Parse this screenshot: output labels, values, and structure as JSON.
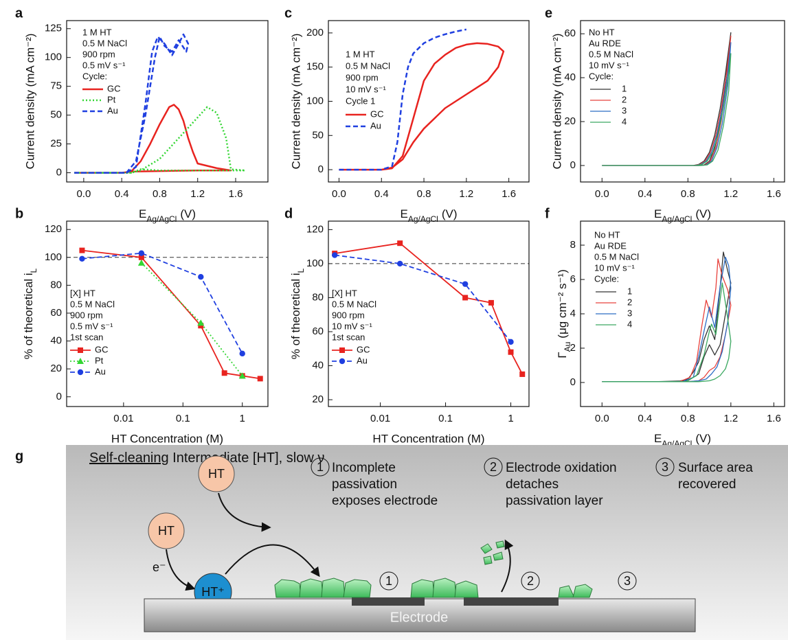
{
  "chart_data": [
    {
      "panel": "a",
      "type": "line",
      "xlabel": [
        "E",
        "Ag/AgCl",
        "(V)"
      ],
      "ylabel": "Current density (mA cm⁻²)",
      "xlim": [
        -0.18,
        1.94
      ],
      "xticks": [
        {
          "value": 0,
          "label": "0.0"
        },
        0.4,
        0.8,
        1.2,
        1.6
      ],
      "ylim": [
        -8,
        132
      ],
      "yticks": [
        0,
        25,
        50,
        75,
        100,
        125
      ],
      "annotations": [
        "1 M HT",
        "0.5 M NaCl",
        "900 rpm",
        "0.5 mV s⁻¹",
        "Cycle:"
      ],
      "series": [
        {
          "name": "GC",
          "color": "#e8231f",
          "line_style": "solid",
          "x": [
            -0.1,
            0.4,
            0.5,
            0.6,
            0.7,
            0.8,
            0.9,
            0.95,
            1.0,
            1.05,
            1.1,
            1.15,
            1.2,
            1.4,
            1.55,
            1.2,
            0.8,
            0.5,
            0.4,
            -0.1
          ],
          "values": [
            0,
            0,
            1,
            10,
            25,
            42,
            57,
            59,
            55,
            45,
            30,
            18,
            8,
            4,
            2,
            2,
            1.5,
            1,
            0,
            0
          ]
        },
        {
          "name": "Pt",
          "color": "#33d633",
          "line_style": "dotted",
          "x": [
            -0.1,
            0.5,
            0.6,
            0.8,
            1.0,
            1.2,
            1.3,
            1.4,
            1.5,
            1.55,
            1.7,
            1.2,
            0.8,
            0.6,
            0.5,
            -0.1
          ],
          "values": [
            0,
            0,
            2,
            12,
            30,
            48,
            57,
            52,
            30,
            3,
            2,
            2,
            2,
            3,
            0,
            0
          ]
        },
        {
          "name": "Au",
          "color": "#1f3fe0",
          "line_style": "dashed",
          "x": [
            -0.1,
            0.45,
            0.55,
            0.65,
            0.72,
            0.78,
            0.85,
            0.93,
            1.0,
            1.05,
            1.1,
            1.08,
            1.0,
            0.93,
            0.85,
            0.8,
            0.75,
            0.65,
            0.55,
            0.45,
            -0.1
          ],
          "values": [
            0,
            0,
            5,
            60,
            105,
            118,
            112,
            102,
            112,
            120,
            112,
            105,
            115,
            105,
            110,
            118,
            100,
            50,
            10,
            0,
            0
          ]
        }
      ]
    },
    {
      "panel": "b",
      "type": "line",
      "xlog": true,
      "xlabel": "HT Concentration (M)",
      "ylabel": [
        "% of theoretical i",
        "L"
      ],
      "xlim": [
        0.0011,
        2.7
      ],
      "xticks": [
        0.01,
        0.1,
        1
      ],
      "ylim": [
        -7,
        126
      ],
      "yticks": [
        0,
        20,
        40,
        60,
        80,
        100,
        120
      ],
      "reference_line": 100,
      "annotations": [
        "[X] HT",
        "0.5 M NaCl",
        "900 rpm",
        "0.5 mV s⁻¹",
        "1st scan"
      ],
      "series": [
        {
          "name": "GC",
          "color": "#e8231f",
          "line_style": "solid",
          "marker": "square",
          "x": [
            0.002,
            0.02,
            0.2,
            0.5,
            1,
            2
          ],
          "values": [
            105,
            100,
            51,
            17,
            15,
            13
          ]
        },
        {
          "name": "Pt",
          "color": "#33d633",
          "line_style": "dotted",
          "marker": "triangle",
          "x": [
            0.02,
            0.2,
            1
          ],
          "values": [
            96,
            53,
            15
          ]
        },
        {
          "name": "Au",
          "color": "#1f3fe0",
          "line_style": "dashed",
          "marker": "circle",
          "x": [
            0.002,
            0.02,
            0.2,
            1
          ],
          "values": [
            99,
            103,
            86,
            31
          ]
        }
      ]
    },
    {
      "panel": "c",
      "type": "line",
      "xlabel": [
        "E",
        "Ag/AgCl",
        "(V)"
      ],
      "ylabel": "Current density (mA cm⁻²)",
      "xlim": [
        -0.1,
        1.79
      ],
      "xticks": [
        {
          "value": 0,
          "label": "0.0"
        },
        0.4,
        0.8,
        1.2,
        1.6
      ],
      "ylim": [
        -18,
        218
      ],
      "yticks": [
        0,
        50,
        100,
        150,
        200
      ],
      "annotations": [
        "1 M HT",
        "0.5 M NaCl",
        "900 rpm",
        "10 mV s⁻¹",
        "Cycle 1"
      ],
      "series": [
        {
          "name": "GC",
          "color": "#e8231f",
          "line_style": "solid",
          "x": [
            0,
            0.4,
            0.5,
            0.6,
            0.7,
            0.8,
            0.9,
            1.0,
            1.1,
            1.2,
            1.3,
            1.4,
            1.5,
            1.55,
            1.5,
            1.4,
            1.2,
            1.0,
            0.8,
            0.7,
            0.6,
            0.5,
            0.4,
            0
          ],
          "values": [
            0,
            0,
            2,
            20,
            75,
            130,
            155,
            168,
            178,
            183,
            185,
            184,
            180,
            173,
            150,
            130,
            110,
            90,
            60,
            40,
            15,
            3,
            0,
            0
          ]
        },
        {
          "name": "Au",
          "color": "#1f3fe0",
          "line_style": "dashed",
          "x": [
            0,
            0.4,
            0.5,
            0.55,
            0.6,
            0.65,
            0.7,
            0.8,
            0.9,
            1.0,
            1.1,
            1.2
          ],
          "values": [
            0,
            0,
            5,
            40,
            110,
            150,
            170,
            185,
            193,
            198,
            202,
            205
          ]
        }
      ]
    },
    {
      "panel": "d",
      "type": "line",
      "xlog": true,
      "xlabel": "HT Concentration (M)",
      "ylabel": [
        "% of theoretical i",
        "L"
      ],
      "xlim": [
        0.0016,
        1.9
      ],
      "xticks": [
        0.01,
        0.1,
        1
      ],
      "ylim": [
        16,
        125
      ],
      "yticks": [
        20,
        40,
        60,
        80,
        100,
        120
      ],
      "reference_line": 100,
      "annotations": [
        "[X] HT",
        "0.5 M NaCl",
        "900 rpm",
        "10 mV s⁻¹",
        "1st scan"
      ],
      "series": [
        {
          "name": "GC",
          "color": "#e8231f",
          "line_style": "solid",
          "marker": "square",
          "x": [
            0.002,
            0.02,
            0.2,
            0.5,
            1,
            1.5
          ],
          "values": [
            106,
            112,
            80,
            77,
            48,
            35
          ]
        },
        {
          "name": "Au",
          "color": "#1f3fe0",
          "line_style": "dashed",
          "marker": "circle",
          "x": [
            0.002,
            0.02,
            0.2,
            1
          ],
          "values": [
            105,
            100,
            88,
            54
          ]
        }
      ]
    },
    {
      "panel": "e",
      "type": "line",
      "xlabel": [
        "E",
        "Ag/AgCl",
        "(V)"
      ],
      "ylabel": "Current density (mA cm⁻²)",
      "xlim": [
        -0.2,
        1.7
      ],
      "xticks": [
        {
          "value": 0,
          "label": "0.0"
        },
        0.4,
        0.8,
        1.2,
        1.6
      ],
      "ylim": [
        -7.5,
        66
      ],
      "yticks": [
        0,
        20,
        40,
        60
      ],
      "annotations": [
        "No HT",
        "Au RDE",
        "0.5 M NaCl",
        "10 mV s⁻¹",
        "Cycle:"
      ],
      "series": [
        {
          "name": "1",
          "color": "#333333",
          "line_style": "solid",
          "x": [
            0,
            0.85,
            0.9,
            0.95,
            1.0,
            1.05,
            1.1,
            1.15,
            1.2,
            1.15,
            1.1,
            1.05,
            1.0,
            0.95,
            0.9,
            0
          ],
          "values": [
            0,
            0,
            0.5,
            2,
            6,
            14,
            26,
            42,
            60.5,
            38,
            20,
            8,
            2,
            0.3,
            0,
            0
          ]
        },
        {
          "name": "2",
          "color": "#e8413c",
          "line_style": "solid",
          "x": [
            0,
            0.86,
            0.91,
            0.96,
            1.01,
            1.06,
            1.11,
            1.16,
            1.2,
            1.16,
            1.11,
            1.06,
            1.01,
            0.96,
            0.91,
            0
          ],
          "values": [
            0,
            0,
            0.5,
            2,
            6,
            14,
            26,
            42,
            59,
            38,
            20,
            8,
            2,
            0.3,
            0,
            0
          ]
        },
        {
          "name": "3",
          "color": "#2b6cc4",
          "line_style": "solid",
          "x": [
            0,
            0.87,
            0.92,
            0.97,
            1.02,
            1.07,
            1.12,
            1.17,
            1.2,
            1.17,
            1.12,
            1.07,
            1.02,
            0.97,
            0.92,
            0
          ],
          "values": [
            0,
            0,
            0.5,
            2,
            6,
            14,
            26,
            42,
            56,
            36,
            19,
            8,
            2,
            0.3,
            0,
            0
          ]
        },
        {
          "name": "4",
          "color": "#3aa860",
          "line_style": "solid",
          "x": [
            0,
            0.88,
            0.93,
            0.98,
            1.03,
            1.08,
            1.13,
            1.18,
            1.2,
            1.18,
            1.13,
            1.08,
            1.03,
            0.98,
            0.93,
            0
          ],
          "values": [
            0,
            0,
            0.5,
            2,
            6,
            14,
            26,
            42,
            51,
            34,
            18,
            7,
            2,
            0.3,
            0,
            0
          ]
        }
      ]
    },
    {
      "panel": "f",
      "type": "line",
      "xlabel": [
        "E",
        "Ag/AgCl",
        "(V)"
      ],
      "ylabel": [
        "Γ",
        "Au",
        "(μg cm⁻² s⁻¹)"
      ],
      "xlim": [
        -0.2,
        1.7
      ],
      "xticks": [
        {
          "value": 0,
          "label": "0.0"
        },
        0.4,
        0.8,
        1.2,
        1.6
      ],
      "ylim": [
        -1.4,
        9.4
      ],
      "yticks": [
        0,
        2,
        4,
        6,
        8
      ],
      "annotations": [
        "No HT",
        "Au RDE",
        "0.5 M NaCl",
        "10 mV s⁻¹",
        "Cycle:"
      ],
      "series": [
        {
          "name": "1",
          "color": "#333333",
          "line_style": "solid",
          "x": [
            0,
            0.7,
            0.8,
            0.85,
            0.9,
            0.95,
            1.0,
            1.05,
            1.1,
            1.13,
            1.17,
            1.2,
            1.15,
            1.1,
            1.05,
            1.0,
            0.95,
            0.9,
            0.8,
            0.5,
            0
          ],
          "values": [
            0.05,
            0.05,
            0.2,
            0.6,
            1.2,
            2.5,
            3.3,
            2.5,
            5.5,
            7.6,
            6.5,
            5.8,
            4,
            2.2,
            1.6,
            2.2,
            1.5,
            0.5,
            0.1,
            0.05,
            0.05
          ]
        },
        {
          "name": "2",
          "color": "#e8413c",
          "line_style": "solid",
          "x": [
            0,
            0.72,
            0.82,
            0.88,
            0.93,
            0.97,
            1.02,
            1.06,
            1.08,
            1.12,
            1.17,
            1.2,
            1.15,
            1.1,
            1.05,
            1.0,
            0.95,
            0.9,
            0.8,
            0
          ],
          "values": [
            0.05,
            0.05,
            0.3,
            1.2,
            3.3,
            4.8,
            3.8,
            5.5,
            7.2,
            6.2,
            5.4,
            4.5,
            2.8,
            1.5,
            0.9,
            0.7,
            0.3,
            0.1,
            0.05,
            0.05
          ]
        },
        {
          "name": "3",
          "color": "#2b6cc4",
          "line_style": "solid",
          "x": [
            0,
            0.75,
            0.85,
            0.9,
            0.95,
            1.0,
            1.05,
            1.1,
            1.15,
            1.18,
            1.2,
            1.17,
            1.12,
            1.07,
            1.02,
            0.97,
            0.9,
            0.8,
            0
          ],
          "values": [
            0.05,
            0.05,
            0.3,
            1.5,
            3,
            4.4,
            3.2,
            5.6,
            7.3,
            6.8,
            5.5,
            3.5,
            1.8,
            0.9,
            0.5,
            0.2,
            0.1,
            0.05,
            0.05
          ]
        },
        {
          "name": "4",
          "color": "#3aa860",
          "line_style": "solid",
          "x": [
            0,
            0.78,
            0.88,
            0.95,
            1.0,
            1.02,
            1.06,
            1.1,
            1.12,
            1.16,
            1.2,
            1.18,
            1.15,
            1.1,
            1.05,
            1.0,
            0.9,
            0
          ],
          "values": [
            0.05,
            0.05,
            0.4,
            1.6,
            3,
            3.4,
            2.8,
            4.8,
            5.8,
            4.2,
            2.4,
            1.4,
            0.8,
            0.4,
            0.2,
            0.1,
            0.05,
            0.05
          ]
        }
      ]
    }
  ],
  "diagram": {
    "panel": "g",
    "title": {
      "underlined": "Self-cleaning",
      "rest": " Intermediate [HT], slow ν"
    },
    "molecules": [
      "HT",
      "HT",
      "HT⁺"
    ],
    "electron": "e⁻",
    "electrode": "Electrode",
    "steps": [
      {
        "number": "1",
        "lines": [
          "Incomplete",
          "passivation",
          "exposes electrode"
        ]
      },
      {
        "number": "2",
        "lines": [
          "Electrode oxidation",
          "detaches",
          "passivation layer"
        ]
      },
      {
        "number": "3",
        "lines": [
          "Surface area",
          "recovered"
        ]
      }
    ],
    "surface_labels": [
      "1",
      "2",
      "3"
    ]
  }
}
